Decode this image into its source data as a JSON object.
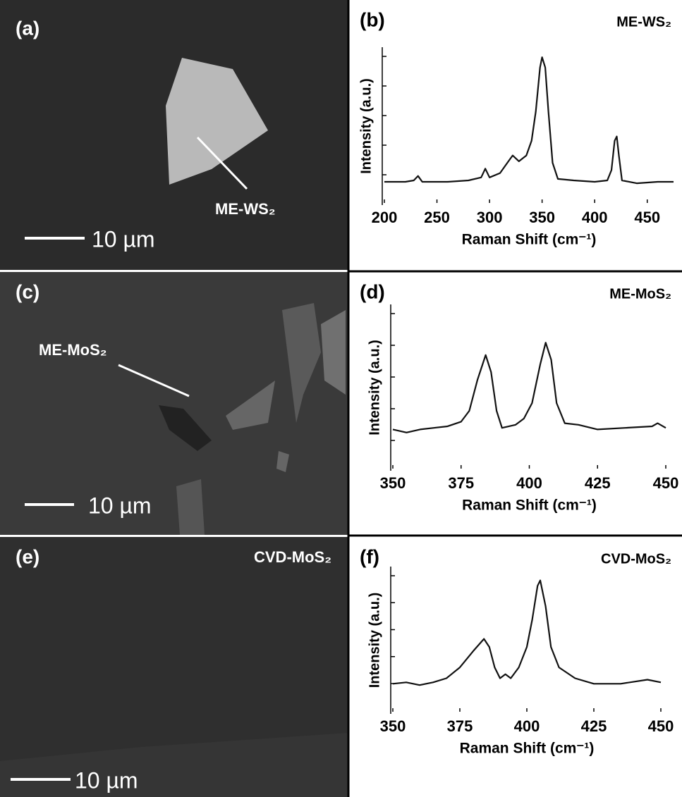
{
  "images": [
    {
      "label": "(a)",
      "annotation": "ME-WS₂",
      "scale_bar": "10 µm"
    },
    {
      "label": "(c)",
      "annotation": "ME-MoS₂",
      "scale_bar": "10 µm"
    },
    {
      "label": "(e)",
      "annotation": "CVD-MoS₂",
      "scale_bar": "10 µm"
    }
  ],
  "chart_data": [
    {
      "type": "line",
      "panel_label": "(b)",
      "title": "ME-WS₂",
      "x_label": "Raman Shift (cm⁻¹)",
      "y_label": "Intensity (a.u.)",
      "color": "#111111",
      "x": [
        200,
        220,
        228,
        232,
        236,
        260,
        280,
        292,
        296,
        300,
        310,
        318,
        322,
        328,
        335,
        340,
        344,
        348,
        350,
        353,
        356,
        360,
        365,
        380,
        400,
        412,
        416,
        419,
        421,
        423,
        426,
        440,
        460,
        475
      ],
      "values": [
        12,
        12,
        13,
        16,
        12,
        12,
        13,
        15,
        21,
        15,
        18,
        26,
        30,
        26,
        30,
        40,
        60,
        90,
        97,
        90,
        60,
        25,
        14,
        13,
        12,
        13,
        20,
        40,
        43,
        30,
        13,
        11,
        12,
        12
      ],
      "xlim": [
        200,
        475
      ],
      "xticks": [
        200,
        250,
        300,
        350,
        400,
        450
      ],
      "ylim": [
        0,
        100
      ]
    },
    {
      "type": "line",
      "panel_label": "(d)",
      "title": "ME-MoS₂",
      "x_label": "Raman Shift (cm⁻¹)",
      "y_label": "Intensity (a.u.)",
      "color": "#111111",
      "x": [
        350,
        355,
        360,
        365,
        370,
        375,
        378,
        381,
        384,
        386,
        388,
        390,
        395,
        398,
        401,
        404,
        406,
        408,
        410,
        413,
        418,
        425,
        435,
        445,
        447,
        450
      ],
      "values": [
        23,
        21,
        23,
        24,
        25,
        28,
        35,
        55,
        71,
        60,
        35,
        24,
        26,
        30,
        40,
        65,
        79,
        68,
        40,
        27,
        26,
        23,
        24,
        25,
        27,
        24
      ],
      "xlim": [
        350,
        450
      ],
      "xticks": [
        350,
        375,
        400,
        425,
        450
      ],
      "ylim": [
        0,
        100
      ]
    },
    {
      "type": "line",
      "panel_label": "(f)",
      "title": "CVD-MoS₂",
      "x_label": "Raman Shift (cm⁻¹)",
      "y_label": "Intensity (a.u.)",
      "color": "#111111",
      "x": [
        350,
        355,
        360,
        365,
        370,
        375,
        380,
        384,
        386,
        388,
        390,
        392,
        394,
        397,
        400,
        402,
        404,
        405,
        407,
        409,
        412,
        418,
        425,
        435,
        445,
        450
      ],
      "values": [
        18,
        19,
        17,
        19,
        22,
        30,
        42,
        51,
        45,
        30,
        22,
        25,
        22,
        30,
        45,
        65,
        90,
        94,
        75,
        45,
        30,
        22,
        18,
        18,
        21,
        19
      ],
      "xlim": [
        350,
        450
      ],
      "xticks": [
        350,
        375,
        400,
        425,
        450
      ],
      "ylim": [
        0,
        100
      ]
    }
  ]
}
